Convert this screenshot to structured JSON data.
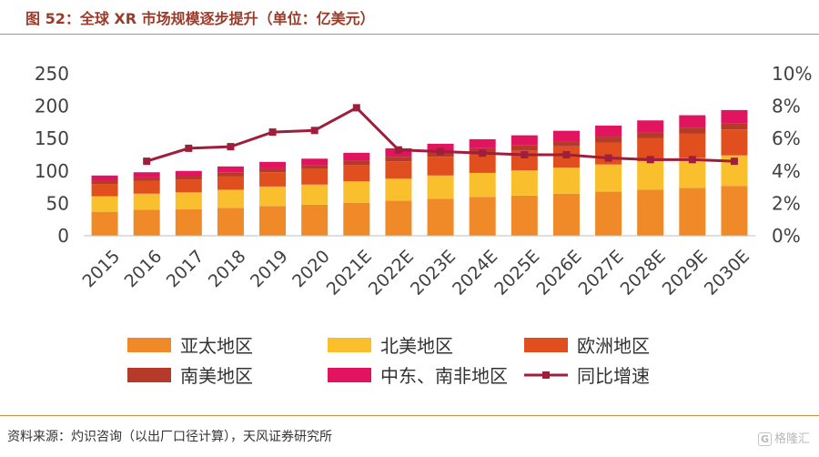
{
  "title": "图 52：全球 XR 市场规模逐步提升（单位：亿美元）",
  "source": "资料来源：灼识咨询（以出厂口径计算），天风证券研究所",
  "watermark": "格隆汇",
  "chart_data": {
    "type": "bar",
    "stacked": true,
    "categories": [
      "2015",
      "2016",
      "2017",
      "2018",
      "2019",
      "2020",
      "2021E",
      "2022E",
      "2023E",
      "2024E",
      "2025E",
      "2026E",
      "2027E",
      "2028E",
      "2029E",
      "2030E"
    ],
    "y_ticks": [
      "250",
      "200",
      "150",
      "100",
      "50",
      "0"
    ],
    "y2_ticks": [
      "10%",
      "8%",
      "6%",
      "4%",
      "2%",
      "0%"
    ],
    "ylim": [
      0,
      250
    ],
    "y2lim": [
      0,
      10
    ],
    "series": [
      {
        "name": "亚太地区",
        "color": "#f08a29",
        "values": [
          37,
          40,
          41,
          43,
          46,
          48,
          51,
          54,
          57,
          60,
          62,
          65,
          68,
          71,
          74,
          77
        ]
      },
      {
        "name": "北美地区",
        "color": "#f9bf2c",
        "values": [
          24,
          25,
          26,
          28,
          30,
          31,
          33,
          34,
          36,
          37,
          39,
          40,
          42,
          44,
          46,
          47
        ]
      },
      {
        "name": "欧洲地区",
        "color": "#e14f1f",
        "values": [
          19,
          20,
          20,
          21,
          22,
          24,
          25,
          27,
          29,
          30,
          31,
          33,
          34,
          36,
          38,
          40
        ]
      },
      {
        "name": "南美地区",
        "color": "#b53a2a",
        "values": [
          5,
          5,
          5,
          6,
          6,
          6,
          7,
          7,
          7,
          8,
          8,
          8,
          9,
          9,
          9,
          10
        ]
      },
      {
        "name": "中东、南非地区",
        "color": "#e1145f",
        "values": [
          8,
          8,
          8,
          9,
          10,
          10,
          12,
          13,
          13,
          14,
          15,
          16,
          17,
          18,
          19,
          20
        ]
      }
    ],
    "line": {
      "name": "同比增速",
      "color": "#9e1e3c",
      "values": [
        null,
        4.6,
        5.4,
        5.5,
        6.4,
        6.5,
        7.9,
        5.3,
        5.2,
        5.1,
        5.0,
        5.0,
        4.8,
        4.7,
        4.7,
        4.6
      ]
    },
    "legend_position": "bottom",
    "grid": false
  }
}
